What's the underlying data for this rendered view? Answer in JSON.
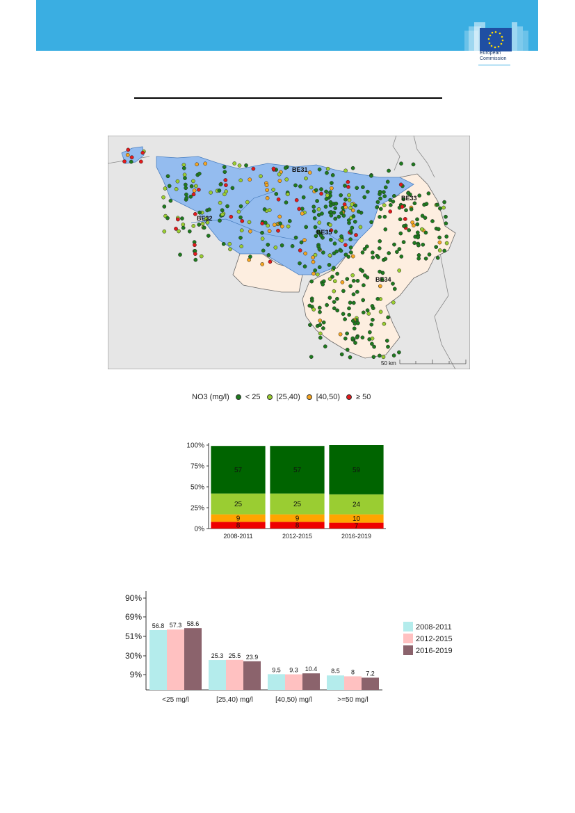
{
  "logo": {
    "line1": "European",
    "line2": "Commission"
  },
  "map": {
    "labels": {
      "be31": "BE31",
      "be32": "BE32",
      "be33": "BE33",
      "be34": "BE34",
      "be35": "BE35",
      "scale": "50 km"
    }
  },
  "legend": {
    "title": "NO3 (mg/l)",
    "items": [
      {
        "label": "< 25",
        "color": "#1f7a1f"
      },
      {
        "label": "[25,40)",
        "color": "#9acd32"
      },
      {
        "label": "[40,50)",
        "color": "#f5a623"
      },
      {
        "label": "≥ 50",
        "color": "#e31a1c"
      }
    ]
  },
  "chart_data": [
    {
      "type": "bar",
      "stacked": true,
      "categories": [
        "2008-2011",
        "2012-2015",
        "2016-2019"
      ],
      "y_ticks": [
        "0%",
        "25%",
        "50%",
        "75%",
        "100%"
      ],
      "ylim": [
        0,
        100
      ],
      "series": [
        {
          "name": "≥ 50",
          "color": "#ee0000",
          "values": [
            8,
            8,
            7
          ]
        },
        {
          "name": "[40,50)",
          "color": "#ffa500",
          "values": [
            9,
            9,
            10
          ]
        },
        {
          "name": "[25,40)",
          "color": "#9acd32",
          "values": [
            25,
            25,
            24
          ]
        },
        {
          "name": "< 25",
          "color": "#006400",
          "values": [
            57,
            57,
            59
          ]
        }
      ]
    },
    {
      "type": "bar",
      "categories": [
        "<25 mg/l",
        "[25,40) mg/l",
        "[40,50) mg/l",
        ">=50 mg/l"
      ],
      "y_ticks": [
        "9%",
        "30%",
        "51%",
        "69%",
        "90%"
      ],
      "y_tick_values": [
        9,
        30,
        51,
        69,
        90
      ],
      "series": [
        {
          "name": "2008-2011",
          "color": "#b4ecec",
          "values": [
            56.8,
            25.3,
            9.5,
            8.5
          ],
          "labels": [
            "56.8",
            "25.3",
            "9.5",
            "8.5"
          ]
        },
        {
          "name": "2012-2015",
          "color": "#ffc1c1",
          "values": [
            57.3,
            25.5,
            9.3,
            8
          ],
          "labels": [
            "57.3",
            "25.5",
            "9.3",
            "8"
          ]
        },
        {
          "name": "2016-2019",
          "color": "#8b636c",
          "values": [
            58.6,
            23.9,
            10.4,
            7.2
          ],
          "labels": [
            "58.6",
            "23.9",
            "10.4",
            "7.2"
          ]
        }
      ]
    }
  ]
}
